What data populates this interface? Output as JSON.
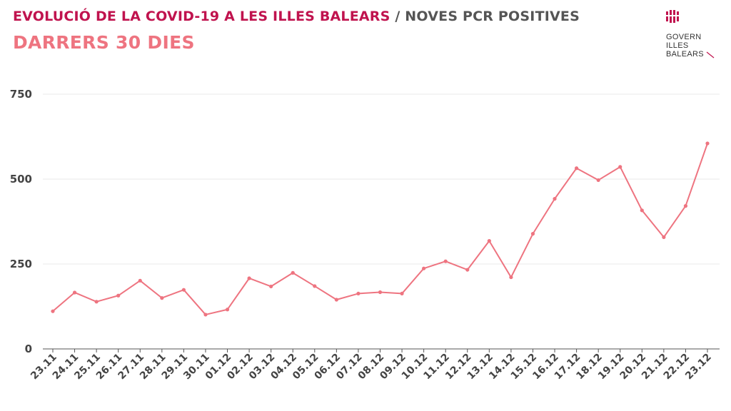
{
  "header": {
    "title_main": "EVOLUCIÓ DE LA COVID-19 A LES ILLES BALEARS",
    "title_separator": " / ",
    "title_sub": "NOVES PCR POSITIVES",
    "subtitle": "DARRERS 30 DIES"
  },
  "logo": {
    "lines": [
      "GOVERN",
      "ILLES",
      "BALEARS"
    ],
    "mark_color": "#c0134e"
  },
  "chart_data": {
    "type": "line",
    "title": "EVOLUCIÓ DE LA COVID-19 A LES ILLES BALEARS / NOVES PCR POSITIVES",
    "subtitle": "DARRERS 30 DIES",
    "xlabel": "",
    "ylabel": "",
    "categories": [
      "23.11",
      "24.11",
      "25.11",
      "26.11",
      "27.11",
      "28.11",
      "29.11",
      "30.11",
      "01.12",
      "02.12",
      "03.12",
      "04.12",
      "05.12",
      "06.12",
      "07.12",
      "08.12",
      "09.12",
      "10.12",
      "11.12",
      "12.12",
      "13.12",
      "14.12",
      "15.12",
      "16.12",
      "17.12",
      "18.12",
      "19.12",
      "20.12",
      "21.12",
      "22.12",
      "23.12"
    ],
    "series": [
      {
        "values": [
          111,
          166,
          139,
          157,
          201,
          150,
          174,
          101,
          116,
          208,
          184,
          224,
          185,
          145,
          163,
          167,
          163,
          237,
          258,
          233,
          318,
          211,
          339,
          442,
          532,
          497,
          536,
          408,
          329,
          421,
          605
        ]
      }
    ],
    "yticks": [
      0,
      250,
      500,
      750
    ],
    "ylim": [
      0,
      750
    ],
    "grid": true,
    "legend": "none",
    "colors": {
      "line": "#ee7480",
      "grid": "#e8e8e8",
      "axis": "#555555"
    }
  }
}
